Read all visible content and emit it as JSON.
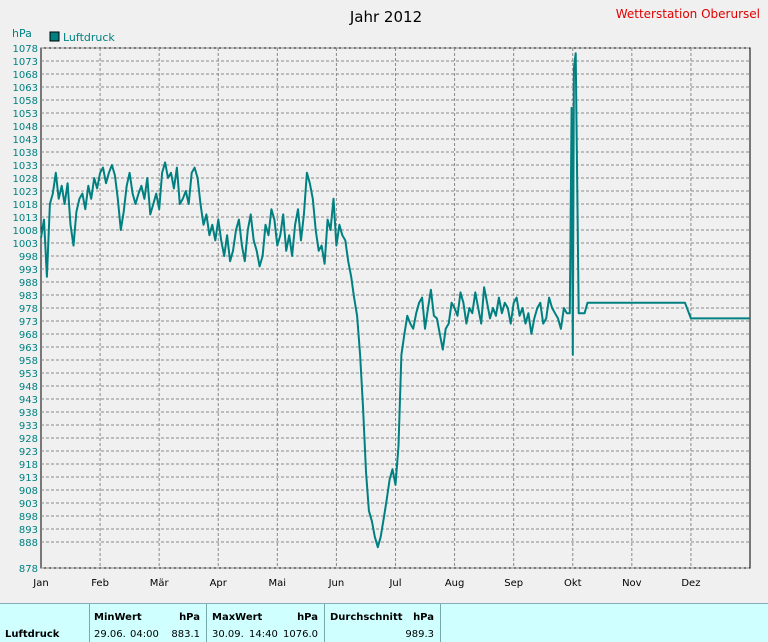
{
  "header": {
    "title": "Jahr 2012",
    "station": "Wetterstation Oberursel",
    "station_color": "#e00000"
  },
  "chart_data": {
    "type": "line",
    "title": "Jahr 2012",
    "ylabel": "hPa",
    "xlabel": "",
    "ylim": [
      878,
      1078
    ],
    "yticks": [
      1078,
      1073,
      1068,
      1063,
      1058,
      1053,
      1048,
      1043,
      1038,
      1033,
      1028,
      1023,
      1018,
      1013,
      1008,
      1003,
      998,
      993,
      988,
      983,
      978,
      973,
      968,
      963,
      958,
      953,
      948,
      943,
      938,
      933,
      928,
      923,
      918,
      913,
      908,
      903,
      898,
      893,
      888,
      878
    ],
    "xlim": [
      0,
      12
    ],
    "x_unit": "months since Jan 1 2012",
    "xticks": [
      {
        "x": 0,
        "label": "Jan"
      },
      {
        "x": 1,
        "label": "Feb"
      },
      {
        "x": 2,
        "label": "Mär"
      },
      {
        "x": 3,
        "label": "Apr"
      },
      {
        "x": 4,
        "label": "Mai"
      },
      {
        "x": 5,
        "label": "Jun"
      },
      {
        "x": 6,
        "label": "Jul"
      },
      {
        "x": 7,
        "label": "Aug"
      },
      {
        "x": 8,
        "label": "Sep"
      },
      {
        "x": 9,
        "label": "Okt"
      },
      {
        "x": 10,
        "label": "Nov"
      },
      {
        "x": 11,
        "label": "Dez"
      }
    ],
    "grid": true,
    "legend_position": "top-left",
    "series": [
      {
        "name": "Luftdruck",
        "color": "#008080",
        "x": [
          0.0,
          0.05,
          0.1,
          0.15,
          0.2,
          0.25,
          0.3,
          0.35,
          0.4,
          0.45,
          0.5,
          0.55,
          0.6,
          0.65,
          0.7,
          0.75,
          0.8,
          0.85,
          0.9,
          0.95,
          1.0,
          1.05,
          1.1,
          1.15,
          1.2,
          1.25,
          1.3,
          1.35,
          1.4,
          1.45,
          1.5,
          1.55,
          1.6,
          1.65,
          1.7,
          1.75,
          1.8,
          1.85,
          1.9,
          1.95,
          2.0,
          2.05,
          2.1,
          2.15,
          2.2,
          2.25,
          2.3,
          2.35,
          2.4,
          2.45,
          2.5,
          2.55,
          2.6,
          2.65,
          2.7,
          2.75,
          2.8,
          2.85,
          2.9,
          2.95,
          3.0,
          3.05,
          3.1,
          3.15,
          3.2,
          3.25,
          3.3,
          3.35,
          3.4,
          3.45,
          3.5,
          3.55,
          3.6,
          3.65,
          3.7,
          3.75,
          3.8,
          3.85,
          3.9,
          3.95,
          4.0,
          4.05,
          4.1,
          4.15,
          4.2,
          4.25,
          4.3,
          4.35,
          4.4,
          4.45,
          4.5,
          4.55,
          4.6,
          4.65,
          4.7,
          4.75,
          4.8,
          4.85,
          4.9,
          4.95,
          5.0,
          5.05,
          5.1,
          5.15,
          5.2,
          5.25,
          5.3,
          5.35,
          5.4,
          5.45,
          5.5,
          5.55,
          5.6,
          5.65,
          5.7,
          5.75,
          5.8,
          5.85,
          5.9,
          5.95,
          6.0,
          6.05,
          6.1,
          6.15,
          6.2,
          6.25,
          6.3,
          6.35,
          6.4,
          6.45,
          6.5,
          6.55,
          6.6,
          6.65,
          6.7,
          6.75,
          6.8,
          6.85,
          6.9,
          6.95,
          7.0,
          7.05,
          7.1,
          7.15,
          7.2,
          7.25,
          7.3,
          7.35,
          7.4,
          7.45,
          7.5,
          7.55,
          7.6,
          7.65,
          7.7,
          7.75,
          7.8,
          7.85,
          7.9,
          7.95,
          8.0,
          8.05,
          8.1,
          8.15,
          8.2,
          8.25,
          8.3,
          8.35,
          8.4,
          8.45,
          8.5,
          8.55,
          8.6,
          8.65,
          8.7,
          8.75,
          8.8,
          8.85,
          8.9,
          8.95,
          8.98,
          9.0,
          9.02,
          9.05,
          9.1,
          9.15,
          9.2,
          9.25,
          9.3,
          9.5,
          10.0,
          10.5,
          10.9,
          11.0,
          11.05,
          11.5,
          12.0
        ],
        "values": [
          1005,
          1012,
          990,
          1018,
          1022,
          1030,
          1020,
          1025,
          1018,
          1026,
          1010,
          1002,
          1015,
          1020,
          1022,
          1016,
          1025,
          1020,
          1028,
          1024,
          1030,
          1032,
          1026,
          1030,
          1033,
          1029,
          1020,
          1008,
          1015,
          1025,
          1030,
          1022,
          1018,
          1022,
          1025,
          1020,
          1028,
          1014,
          1018,
          1022,
          1016,
          1030,
          1034,
          1028,
          1030,
          1024,
          1032,
          1018,
          1020,
          1023,
          1018,
          1030,
          1032,
          1028,
          1018,
          1010,
          1014,
          1006,
          1010,
          1004,
          1012,
          1004,
          998,
          1006,
          996,
          1000,
          1008,
          1012,
          1002,
          996,
          1008,
          1014,
          1004,
          1000,
          994,
          998,
          1010,
          1006,
          1016,
          1012,
          1002,
          1006,
          1014,
          1000,
          1006,
          998,
          1010,
          1016,
          1004,
          1014,
          1030,
          1026,
          1020,
          1008,
          1000,
          1002,
          995,
          1012,
          1008,
          1020,
          1002,
          1010,
          1006,
          1004,
          996,
          990,
          982,
          975,
          960,
          940,
          915,
          900,
          896,
          890,
          886,
          890,
          897,
          904,
          912,
          916,
          910,
          925,
          960,
          968,
          975,
          972,
          970,
          976,
          980,
          982,
          970,
          978,
          985,
          975,
          974,
          968,
          962,
          970,
          972,
          980,
          978,
          975,
          984,
          980,
          972,
          978,
          976,
          984,
          978,
          972,
          986,
          980,
          974,
          978,
          975,
          982,
          976,
          980,
          978,
          972,
          980,
          982,
          975,
          978,
          972,
          976,
          968,
          974,
          978,
          980,
          972,
          974,
          982,
          978,
          976,
          974,
          970,
          978,
          976,
          976,
          1055,
          960,
          1070,
          1076,
          976,
          976,
          976,
          980,
          980,
          980,
          980,
          980,
          980,
          974,
          974,
          974,
          974
        ]
      }
    ]
  },
  "stats": {
    "row_label": "Luftdruck",
    "min": {
      "label": "MinWert",
      "unit": "hPa",
      "date": "29.06.",
      "time": "04:00",
      "value": "883.1"
    },
    "max": {
      "label": "MaxWert",
      "unit": "hPa",
      "date": "30.09.",
      "time": "14:40",
      "value": "1076.0"
    },
    "avg": {
      "label": "Durchschnitt",
      "unit": "hPa",
      "value": "989.3"
    }
  }
}
